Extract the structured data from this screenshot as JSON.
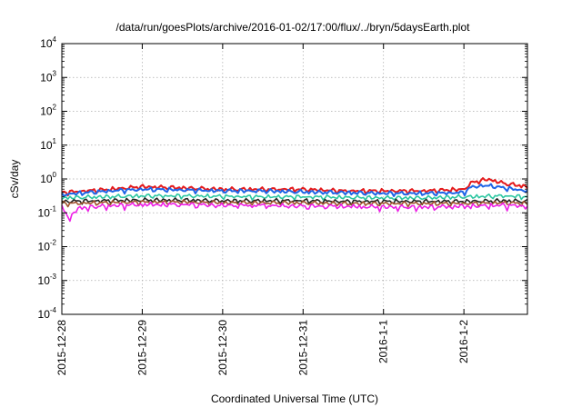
{
  "chart_data": {
    "type": "line",
    "title": "/data/run/goesPlots/archive/2016-01-02/17:00/flux/../bryn/5daysEarth.plot",
    "xlabel": "Coordinated Universal Time (UTC)",
    "ylabel": "cSv/day",
    "yscale": "log",
    "ylim": [
      0.0001,
      10000
    ],
    "xlim": [
      "2015-12-28",
      "2016-01-02 19:00"
    ],
    "grid": true,
    "legend": "none",
    "x_ticks": [
      "2015-12-28",
      "2015-12-29",
      "2015-12-30",
      "2015-12-31",
      "2016-1-1",
      "2016-1-2"
    ],
    "y_ticks": [
      {
        "base": "10",
        "exp": "4"
      },
      {
        "base": "10",
        "exp": "3"
      },
      {
        "base": "10",
        "exp": "2"
      },
      {
        "base": "10",
        "exp": "1"
      },
      {
        "base": "10",
        "exp": "0"
      },
      {
        "base": "10",
        "exp": "-1"
      },
      {
        "base": "10",
        "exp": "-2"
      },
      {
        "base": "10",
        "exp": "-3"
      },
      {
        "base": "10",
        "exp": "-4"
      }
    ],
    "series": [
      {
        "color": "#e41a1c",
        "x_days": [
          0,
          0.3,
          0.6,
          1.0,
          1.5,
          2.0,
          2.5,
          3.0,
          3.5,
          4.0,
          4.5,
          5.0,
          5.1,
          5.3,
          5.5,
          5.79
        ],
        "values": [
          0.4,
          0.45,
          0.5,
          0.6,
          0.55,
          0.5,
          0.5,
          0.5,
          0.45,
          0.45,
          0.45,
          0.5,
          0.8,
          1.0,
          0.75,
          0.6
        ]
      },
      {
        "color": "#1e64e6",
        "x_days": [
          0,
          0.3,
          0.6,
          1.0,
          1.5,
          2.0,
          2.5,
          3.0,
          3.5,
          4.0,
          4.5,
          5.0,
          5.1,
          5.3,
          5.5,
          5.79
        ],
        "values": [
          0.35,
          0.4,
          0.45,
          0.5,
          0.48,
          0.45,
          0.45,
          0.42,
          0.4,
          0.38,
          0.38,
          0.4,
          0.6,
          0.65,
          0.55,
          0.45
        ]
      },
      {
        "color": "#2ac6a0",
        "x_days": [
          0,
          0.5,
          1.0,
          1.5,
          2.0,
          2.5,
          3.0,
          3.5,
          4.0,
          4.5,
          5.0,
          5.5,
          5.79
        ],
        "values": [
          0.28,
          0.3,
          0.32,
          0.32,
          0.31,
          0.3,
          0.3,
          0.29,
          0.28,
          0.28,
          0.3,
          0.32,
          0.3
        ]
      },
      {
        "color": "#222222",
        "x_days": [
          0,
          0.5,
          1.0,
          1.5,
          2.0,
          2.5,
          3.0,
          3.5,
          4.0,
          4.5,
          5.0,
          5.5,
          5.79
        ],
        "values": [
          0.22,
          0.23,
          0.24,
          0.24,
          0.23,
          0.23,
          0.23,
          0.22,
          0.22,
          0.22,
          0.22,
          0.23,
          0.22
        ]
      },
      {
        "color": "#a0522d",
        "x_days": [
          0,
          0.5,
          1.0,
          1.5,
          2.0,
          2.5,
          3.0,
          3.5,
          4.0,
          4.5,
          5.0,
          5.5,
          5.79
        ],
        "values": [
          0.19,
          0.2,
          0.21,
          0.21,
          0.2,
          0.2,
          0.2,
          0.19,
          0.19,
          0.19,
          0.19,
          0.2,
          0.19
        ]
      },
      {
        "color": "#ee1ee6",
        "x_days": [
          0,
          0.1,
          0.2,
          0.5,
          1.0,
          1.5,
          2.0,
          2.5,
          3.0,
          3.5,
          4.0,
          4.5,
          5.0,
          5.5,
          5.79
        ],
        "values": [
          0.15,
          0.07,
          0.14,
          0.16,
          0.18,
          0.18,
          0.17,
          0.17,
          0.16,
          0.16,
          0.15,
          0.15,
          0.16,
          0.17,
          0.16
        ]
      }
    ]
  }
}
